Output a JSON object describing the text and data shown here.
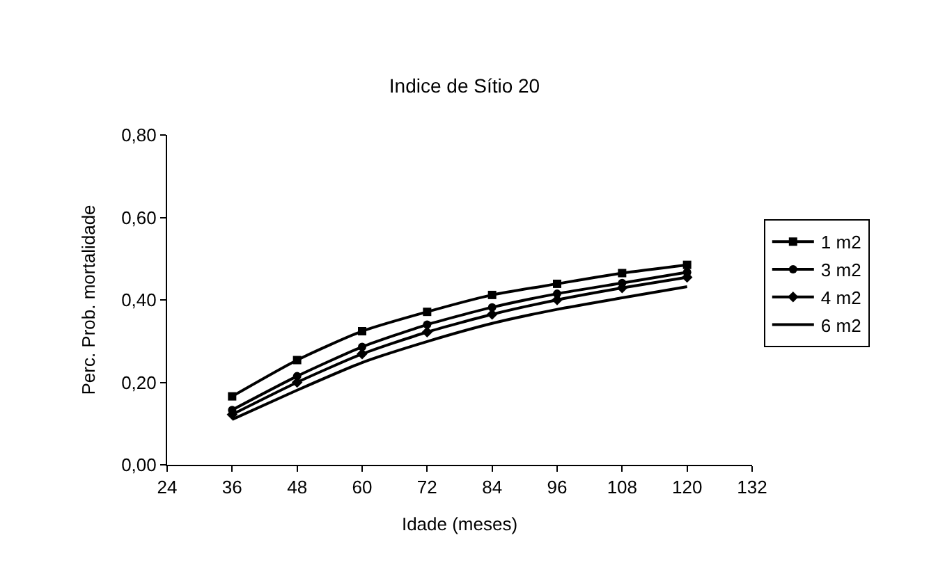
{
  "chart_data": {
    "type": "line",
    "title": "Indice de Sítio 20",
    "xlabel": "Idade (meses)",
    "ylabel": "Perc. Prob. mortalidade",
    "x": [
      36,
      48,
      60,
      72,
      84,
      96,
      108,
      120
    ],
    "xlim": [
      24,
      132
    ],
    "xticks": [
      24,
      36,
      48,
      60,
      72,
      84,
      96,
      108,
      120,
      132
    ],
    "ylim": [
      0,
      0.8
    ],
    "yticks": [
      {
        "value": 0,
        "label": "0,00"
      },
      {
        "value": 0.2,
        "label": "0,20"
      },
      {
        "value": 0.4,
        "label": "0,40"
      },
      {
        "value": 0.6,
        "label": "0,60"
      },
      {
        "value": 0.8,
        "label": "0,80"
      }
    ],
    "legend": "right",
    "line_style": "solid",
    "series": [
      {
        "name": "1 m2",
        "color": "#000000",
        "marker": "square",
        "values": [
          0.166,
          0.254,
          0.324,
          0.371,
          0.412,
          0.439,
          0.465,
          0.485
        ]
      },
      {
        "name": "3 m2",
        "color": "#000000",
        "marker": "circle",
        "values": [
          0.133,
          0.215,
          0.286,
          0.34,
          0.382,
          0.415,
          0.441,
          0.467
        ]
      },
      {
        "name": "4 m2",
        "color": "#000000",
        "marker": "diamond",
        "values": [
          0.122,
          0.2,
          0.269,
          0.322,
          0.365,
          0.4,
          0.429,
          0.455
        ]
      },
      {
        "name": "6 m2",
        "color": "#000000",
        "marker": "none",
        "values": [
          0.11,
          0.181,
          0.248,
          0.299,
          0.343,
          0.377,
          0.405,
          0.432
        ]
      }
    ]
  }
}
